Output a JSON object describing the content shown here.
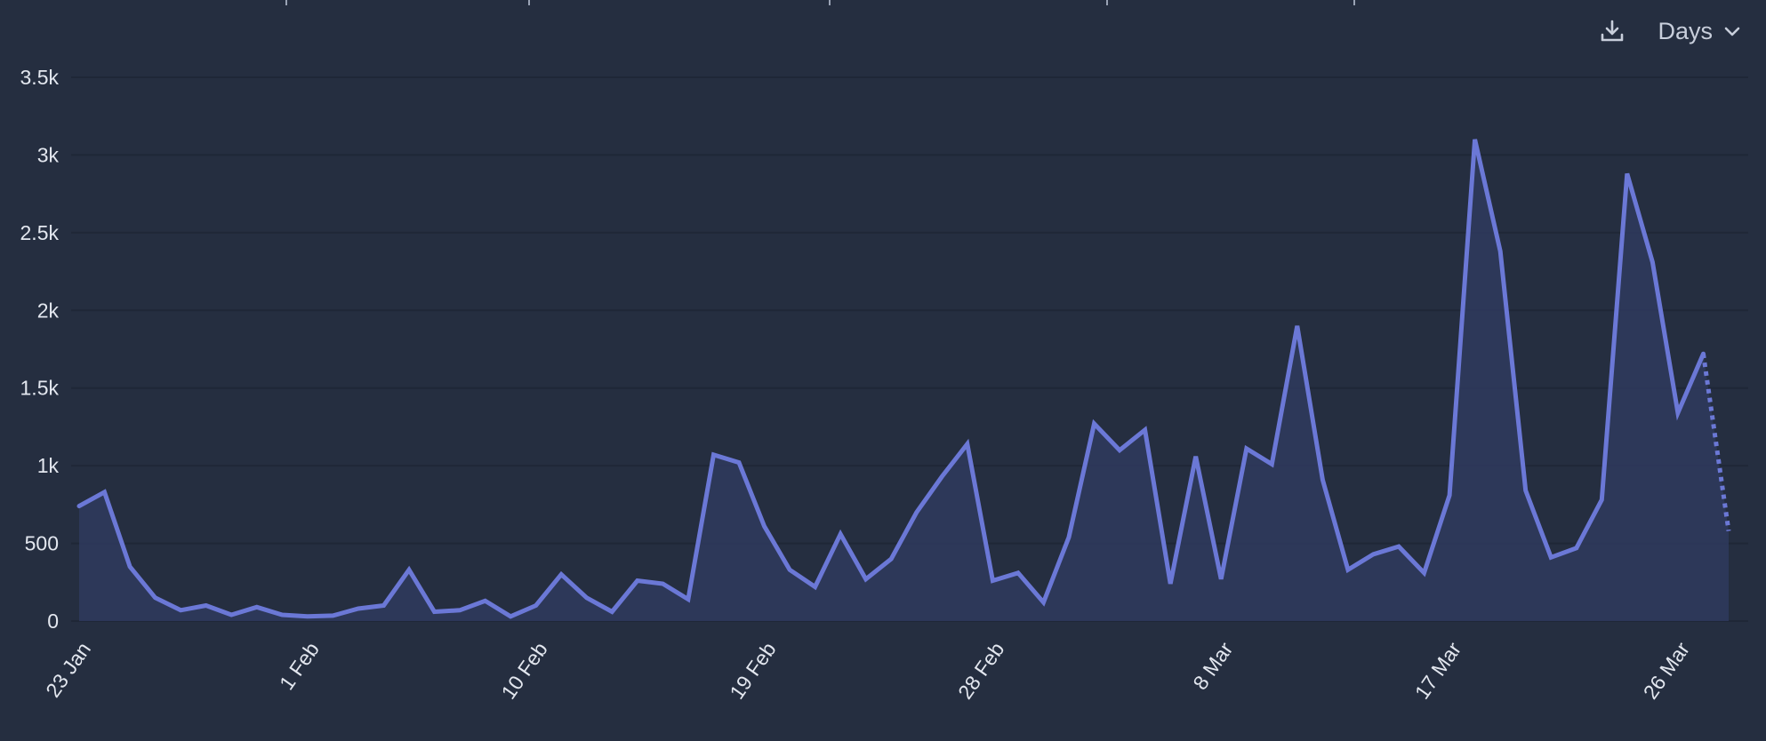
{
  "toolbar": {
    "download_icon": "download-icon",
    "period_label": "Days",
    "chevron_icon": "chevron-down-icon"
  },
  "colors": {
    "background": "#252e40",
    "line": "#6b78d6",
    "area": "#2f3a5e",
    "grid": "#1f2737",
    "text": "#e3e7ef"
  },
  "chart_data": {
    "type": "area",
    "title": "",
    "xlabel": "",
    "ylabel": "",
    "ylim": [
      0,
      3500
    ],
    "yticks": [
      {
        "value": 0,
        "label": "0"
      },
      {
        "value": 500,
        "label": "500"
      },
      {
        "value": 1000,
        "label": "1k"
      },
      {
        "value": 1500,
        "label": "1.5k"
      },
      {
        "value": 2000,
        "label": "2k"
      },
      {
        "value": 2500,
        "label": "2.5k"
      },
      {
        "value": 3000,
        "label": "3k"
      },
      {
        "value": 3500,
        "label": "3.5k"
      }
    ],
    "xticks": [
      {
        "date": "23 Jan",
        "label": "23 Jan"
      },
      {
        "date": "1 Feb",
        "label": "1 Feb"
      },
      {
        "date": "10 Feb",
        "label": "10 Feb"
      },
      {
        "date": "19 Feb",
        "label": "19 Feb"
      },
      {
        "date": "28 Feb",
        "label": "28 Feb"
      },
      {
        "date": "8 Mar",
        "label": "8 Mar"
      },
      {
        "date": "17 Mar",
        "label": "17 Mar"
      },
      {
        "date": "26 Mar",
        "label": "26 Mar"
      }
    ],
    "grid": true,
    "legend": "none",
    "series": [
      {
        "x": [
          "23 Jan",
          "24 Jan",
          "25 Jan",
          "26 Jan",
          "27 Jan",
          "28 Jan",
          "29 Jan",
          "30 Jan",
          "31 Jan",
          "1 Feb",
          "2 Feb",
          "3 Feb",
          "4 Feb",
          "5 Feb",
          "6 Feb",
          "7 Feb",
          "8 Feb",
          "9 Feb",
          "10 Feb",
          "11 Feb",
          "12 Feb",
          "13 Feb",
          "14 Feb",
          "15 Feb",
          "16 Feb",
          "17 Feb",
          "18 Feb",
          "19 Feb",
          "20 Feb",
          "21 Feb",
          "22 Feb",
          "23 Feb",
          "24 Feb",
          "25 Feb",
          "26 Feb",
          "27 Feb",
          "28 Feb",
          "29 Feb",
          "1 Mar",
          "2 Mar",
          "3 Mar",
          "4 Mar",
          "5 Mar",
          "6 Mar",
          "7 Mar",
          "8 Mar",
          "9 Mar",
          "10 Mar",
          "11 Mar",
          "12 Mar",
          "13 Mar",
          "14 Mar",
          "15 Mar",
          "16 Mar",
          "17 Mar",
          "18 Mar",
          "19 Mar",
          "20 Mar",
          "21 Mar",
          "22 Mar",
          "23 Mar",
          "24 Mar",
          "25 Mar",
          "26 Mar",
          "27 Mar",
          "28 Mar"
        ],
        "values": [
          740,
          830,
          350,
          150,
          70,
          100,
          40,
          90,
          40,
          30,
          35,
          80,
          100,
          330,
          60,
          70,
          130,
          30,
          100,
          300,
          150,
          60,
          260,
          240,
          140,
          1070,
          1020,
          610,
          330,
          220,
          560,
          270,
          400,
          700,
          930,
          1140,
          260,
          310,
          120,
          540,
          1270,
          1100,
          1230,
          240,
          1060,
          270,
          1110,
          1010,
          1900,
          910,
          330,
          430,
          480,
          310,
          810,
          3100,
          2380,
          840,
          410,
          470,
          780,
          2880,
          2310,
          1340,
          1720,
          580
        ],
        "projected_from_index": 64
      }
    ]
  }
}
